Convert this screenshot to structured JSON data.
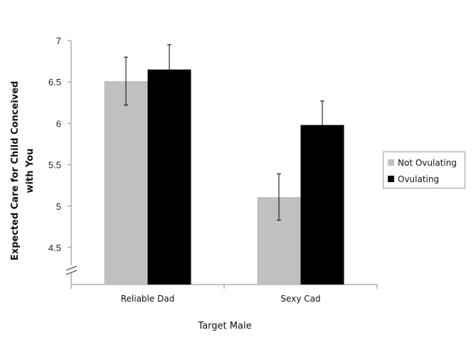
{
  "chart_data": {
    "type": "bar",
    "categories": [
      "Reliable Dad",
      "Sexy Cad"
    ],
    "series": [
      {
        "name": "Not Ovulating",
        "color": "#c0c0c0",
        "values": [
          6.51,
          5.11
        ],
        "errors": [
          0.29,
          0.28
        ]
      },
      {
        "name": "Ovulating",
        "color": "#000000",
        "values": [
          6.65,
          5.98
        ],
        "errors": [
          0.3,
          0.29
        ]
      }
    ],
    "title": "",
    "xlabel": "Target Male",
    "ylabel_lines": [
      "Expected Care for Child Conceived",
      "with You"
    ],
    "yticks": [
      4.5,
      5,
      5.5,
      6,
      6.5,
      7
    ],
    "ytick_labels": [
      "4.5",
      "5",
      "5.5",
      "6",
      "6.5",
      "7"
    ],
    "ylim": [
      4.5,
      7
    ],
    "axis_break": true,
    "grid": false,
    "legend_position": "right"
  }
}
